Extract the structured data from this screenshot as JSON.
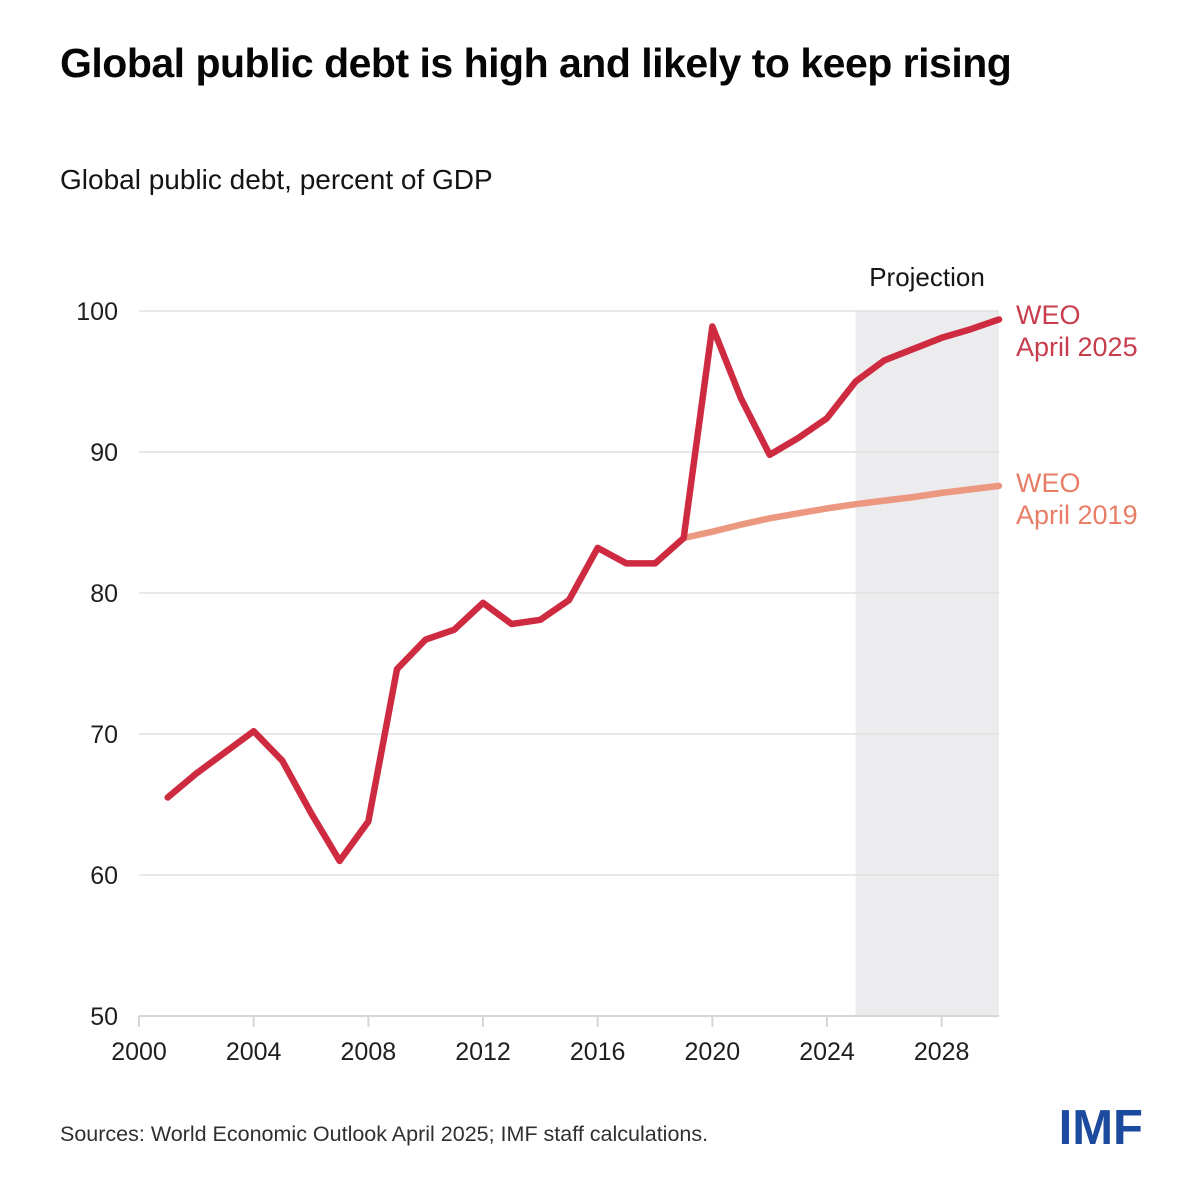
{
  "header": {
    "title": "Global public debt is high and likely to keep rising",
    "subtitle": "Global public debt, percent of GDP"
  },
  "footer": {
    "sources": "Sources: World Economic Outlook April 2025; IMF staff calculations.",
    "logo": "IMF",
    "logo_color": "#1b4a9e"
  },
  "chart_data": {
    "type": "line",
    "title": "Global public debt is high and likely to keep rising",
    "subtitle": "Global public debt, percent of GDP",
    "xlabel": "",
    "ylabel": "percent of GDP",
    "xlim": [
      2000,
      2030
    ],
    "ylim": [
      50,
      100
    ],
    "x_ticks": [
      2000,
      2004,
      2008,
      2012,
      2016,
      2020,
      2024,
      2028
    ],
    "y_ticks": [
      50,
      60,
      70,
      80,
      90,
      100
    ],
    "grid": "horizontal",
    "legend_position": "right-outside",
    "projection_label": "Projection",
    "projection_start": 2025,
    "projection_end": 2030,
    "colors": {
      "grid": "#e0e0e0",
      "axis": "#d6d6d6",
      "tick_text": "#1f1f1f",
      "projection_fill": "#ececee"
    },
    "series": [
      {
        "name": "WEO April 2025",
        "label_lines": [
          "WEO",
          "April 2025"
        ],
        "color": "#ce2b41",
        "legend_color": "#c83d4e",
        "x": [
          2001,
          2002,
          2003,
          2004,
          2005,
          2006,
          2007,
          2008,
          2009,
          2010,
          2011,
          2012,
          2013,
          2014,
          2015,
          2016,
          2017,
          2018,
          2019,
          2020,
          2021,
          2022,
          2023,
          2024,
          2025,
          2026,
          2027,
          2028,
          2029,
          2030
        ],
        "values": [
          65.5,
          67.2,
          68.7,
          70.2,
          68.1,
          64.4,
          61.0,
          63.8,
          74.6,
          76.7,
          77.4,
          79.3,
          77.8,
          78.1,
          79.5,
          83.2,
          82.1,
          82.1,
          83.9,
          98.9,
          93.8,
          89.8,
          91.0,
          92.4,
          95.0,
          96.5,
          97.3,
          98.1,
          98.7,
          99.4
        ]
      },
      {
        "name": "WEO April 2019",
        "label_lines": [
          "WEO",
          "April 2019"
        ],
        "color": "#ec9780",
        "legend_color": "#e87e66",
        "x": [
          2019,
          2020,
          2021,
          2022,
          2023,
          2024,
          2025,
          2026,
          2027,
          2028,
          2029,
          2030
        ],
        "values": [
          83.9,
          84.35,
          84.85,
          85.3,
          85.65,
          86.0,
          86.3,
          86.55,
          86.8,
          87.1,
          87.35,
          87.6
        ]
      }
    ]
  }
}
